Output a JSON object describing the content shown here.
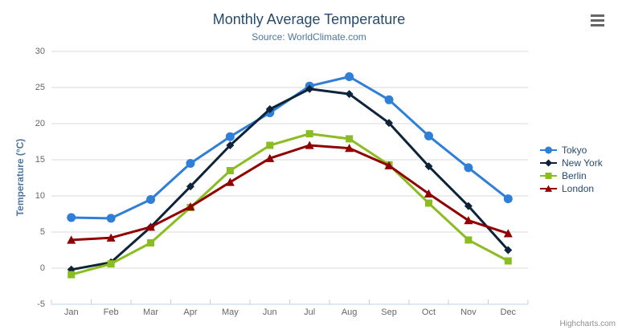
{
  "chart_data": {
    "type": "line",
    "title": "Monthly Average Temperature",
    "subtitle": "Source: WorldClimate.com",
    "xlabel": "",
    "ylabel": "Temperature (°C)",
    "categories": [
      "Jan",
      "Feb",
      "Mar",
      "Apr",
      "May",
      "Jun",
      "Jul",
      "Aug",
      "Sep",
      "Oct",
      "Nov",
      "Dec"
    ],
    "yticks": [
      -5,
      0,
      5,
      10,
      15,
      20,
      25,
      30
    ],
    "ylim": [
      -5,
      30
    ],
    "grid": true,
    "legend_position": "right",
    "series": [
      {
        "name": "Tokyo",
        "color": "#2f7ed8",
        "marker": "circle",
        "values": [
          7.0,
          6.9,
          9.5,
          14.5,
          18.2,
          21.5,
          25.2,
          26.5,
          23.3,
          18.3,
          13.9,
          9.6
        ]
      },
      {
        "name": "New York",
        "color": "#0d233a",
        "marker": "diamond",
        "values": [
          -0.2,
          0.8,
          5.7,
          11.3,
          17.0,
          22.0,
          24.8,
          24.1,
          20.1,
          14.1,
          8.6,
          2.5
        ]
      },
      {
        "name": "Berlin",
        "color": "#8bbc21",
        "marker": "square",
        "values": [
          -0.9,
          0.6,
          3.5,
          8.4,
          13.5,
          17.0,
          18.6,
          17.9,
          14.3,
          9.0,
          3.9,
          1.0
        ]
      },
      {
        "name": "London",
        "color": "#910000",
        "marker": "triangle",
        "values": [
          3.9,
          4.2,
          5.7,
          8.5,
          11.9,
          15.2,
          17.0,
          16.6,
          14.2,
          10.3,
          6.6,
          4.8
        ]
      }
    ]
  },
  "colors": {
    "title": "#274b6d",
    "subtitle": "#4d759e",
    "y_axis_title": "#4d759e",
    "axis_labels": "#666666",
    "gridline": "#d8d8d8",
    "axis_line": "#c0d0e0",
    "legend_text": "#274b6d",
    "credit_text": "#909090",
    "menu_icon": "#666666",
    "background": "#ffffff"
  },
  "credit": "Highcharts.com"
}
